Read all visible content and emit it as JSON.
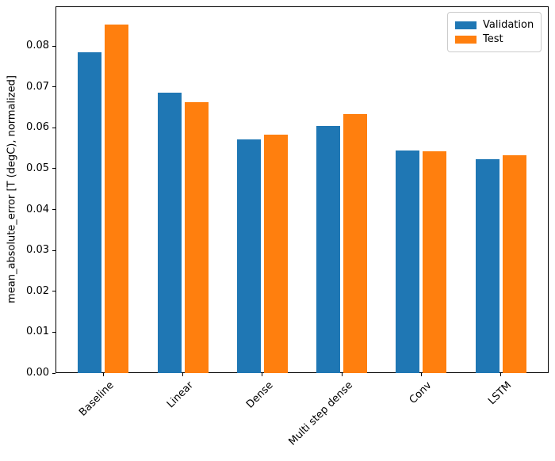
{
  "figure": {
    "background": "#ffffff",
    "axis_color": "#000000",
    "legend_border_color": "#cccccc"
  },
  "legend": {
    "position": "upper right",
    "items": [
      {
        "label": "Validation",
        "color": "#1f77b4"
      },
      {
        "label": "Test",
        "color": "#ff7f0e"
      }
    ]
  },
  "chart_data": {
    "type": "bar",
    "title": "",
    "xlabel": "",
    "ylabel": "mean_absolute_error [T (degC), normalized]",
    "categories": [
      "Baseline",
      "Linear",
      "Dense",
      "Multi step dense",
      "Conv",
      "LSTM"
    ],
    "series": [
      {
        "name": "Validation",
        "color": "#1f77b4",
        "values": [
          0.0785,
          0.0686,
          0.0572,
          0.0605,
          0.0545,
          0.0524
        ]
      },
      {
        "name": "Test",
        "color": "#ff7f0e",
        "values": [
          0.0852,
          0.0663,
          0.0583,
          0.0634,
          0.0543,
          0.0533
        ]
      }
    ],
    "ylim": [
      0,
      0.0897
    ],
    "yticks": [
      0.0,
      0.01,
      0.02,
      0.03,
      0.04,
      0.05,
      0.06,
      0.07,
      0.08
    ],
    "ytick_format": "0.00",
    "xlim": [
      -0.602,
      5.602
    ],
    "bar_width": 0.3,
    "bar_offset": 0.17,
    "xtick_rotation": 45,
    "grid": false,
    "legend_position": "upper right"
  }
}
